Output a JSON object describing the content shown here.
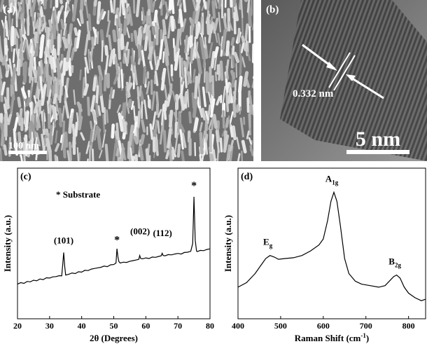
{
  "panels": [
    {
      "label": "(a)",
      "scale_bar": "100 nm"
    },
    {
      "label": "(b)",
      "annotation": "0.332 nm",
      "scale_bar": "5 nm"
    }
  ],
  "chart_data": [
    {
      "type": "line",
      "panel_label": "(c)",
      "note": "* Substrate",
      "xlabel": "2θ (Degrees)",
      "ylabel": "Intensity (a.u.)",
      "xlim": [
        20,
        80
      ],
      "xticks": [
        20,
        30,
        40,
        50,
        60,
        70,
        80
      ],
      "ylim": [
        0,
        100
      ],
      "x": [
        20,
        21,
        22,
        23,
        24,
        25,
        26,
        27,
        28,
        29,
        30,
        31,
        32,
        33,
        33.8,
        34.1,
        34.4,
        34.7,
        35,
        36,
        37,
        38,
        39,
        40,
        41,
        42,
        43,
        44,
        45,
        46,
        47,
        48,
        49,
        50,
        50.7,
        51,
        51.3,
        51.6,
        52,
        53,
        54,
        55,
        56,
        57,
        57.8,
        58.1,
        58.4,
        59,
        60,
        61,
        62,
        63,
        64,
        64.8,
        65.1,
        65.4,
        66,
        67,
        68,
        69,
        70,
        71,
        72,
        73,
        74,
        74.6,
        75,
        75.4,
        75.8,
        76,
        77,
        78,
        79,
        80
      ],
      "series": [
        {
          "color": "#000000",
          "values": [
            23,
            24,
            23.5,
            24.8,
            24.5,
            25.6,
            25.2,
            26.4,
            26,
            27.2,
            27,
            27.8,
            28,
            28.6,
            28.5,
            36,
            44,
            35,
            29,
            29.6,
            30.4,
            30,
            31.2,
            31,
            32.2,
            32,
            33,
            33.4,
            33.8,
            34.2,
            35,
            34.6,
            35.8,
            36,
            37,
            46.5,
            41,
            38,
            37,
            37.6,
            37.4,
            38.2,
            38.6,
            39,
            39.5,
            42,
            40,
            39.8,
            40.4,
            40,
            41,
            40.8,
            41.4,
            41.8,
            43.5,
            42,
            41.8,
            42.6,
            42.4,
            43,
            43.4,
            43,
            44,
            44.2,
            44.8,
            50,
            81,
            52,
            45,
            44.6,
            45.4,
            45.2,
            46,
            46.4
          ]
        }
      ],
      "annotations": [
        {
          "text": "(101)",
          "x": 34.4,
          "y": 50
        },
        {
          "text": "*",
          "x": 51,
          "y": 50
        },
        {
          "text": "(002)",
          "x": 58.2,
          "y": 56
        },
        {
          "text": "(112)",
          "x": 65.2,
          "y": 55
        },
        {
          "text": "*",
          "x": 75,
          "y": 86
        }
      ]
    },
    {
      "type": "line",
      "panel_label": "(d)",
      "xlabel": "Raman Shift (cm",
      "xlabel_sup": "-1",
      "xlabel_end": ")",
      "ylabel": "Intensity (a.u.)",
      "xlim": [
        400,
        840
      ],
      "xticks": [
        400,
        500,
        600,
        700,
        800
      ],
      "ylim": [
        0,
        100
      ],
      "x": [
        400,
        420,
        440,
        455,
        465,
        475,
        485,
        495,
        510,
        530,
        550,
        570,
        590,
        600,
        610,
        618,
        625,
        632,
        640,
        650,
        660,
        675,
        690,
        710,
        730,
        745,
        755,
        765,
        772,
        780,
        790,
        800,
        815,
        830,
        840
      ],
      "series": [
        {
          "color": "#000000",
          "values": [
            21,
            24,
            30,
            36,
            40,
            42,
            41,
            39.5,
            40,
            40.5,
            42,
            45,
            49,
            53,
            65,
            78,
            84,
            78,
            62,
            40,
            30,
            25,
            23,
            22,
            21,
            22,
            25,
            28,
            29,
            27,
            21,
            17,
            14,
            12,
            13
          ]
        }
      ],
      "annotations": [
        {
          "text": "E",
          "sub": "g",
          "x": 470,
          "y": 49
        },
        {
          "text": "A",
          "sub": "1g",
          "x": 620,
          "y": 91
        },
        {
          "text": "B",
          "sub": "2g",
          "x": 768,
          "y": 36
        }
      ]
    }
  ]
}
